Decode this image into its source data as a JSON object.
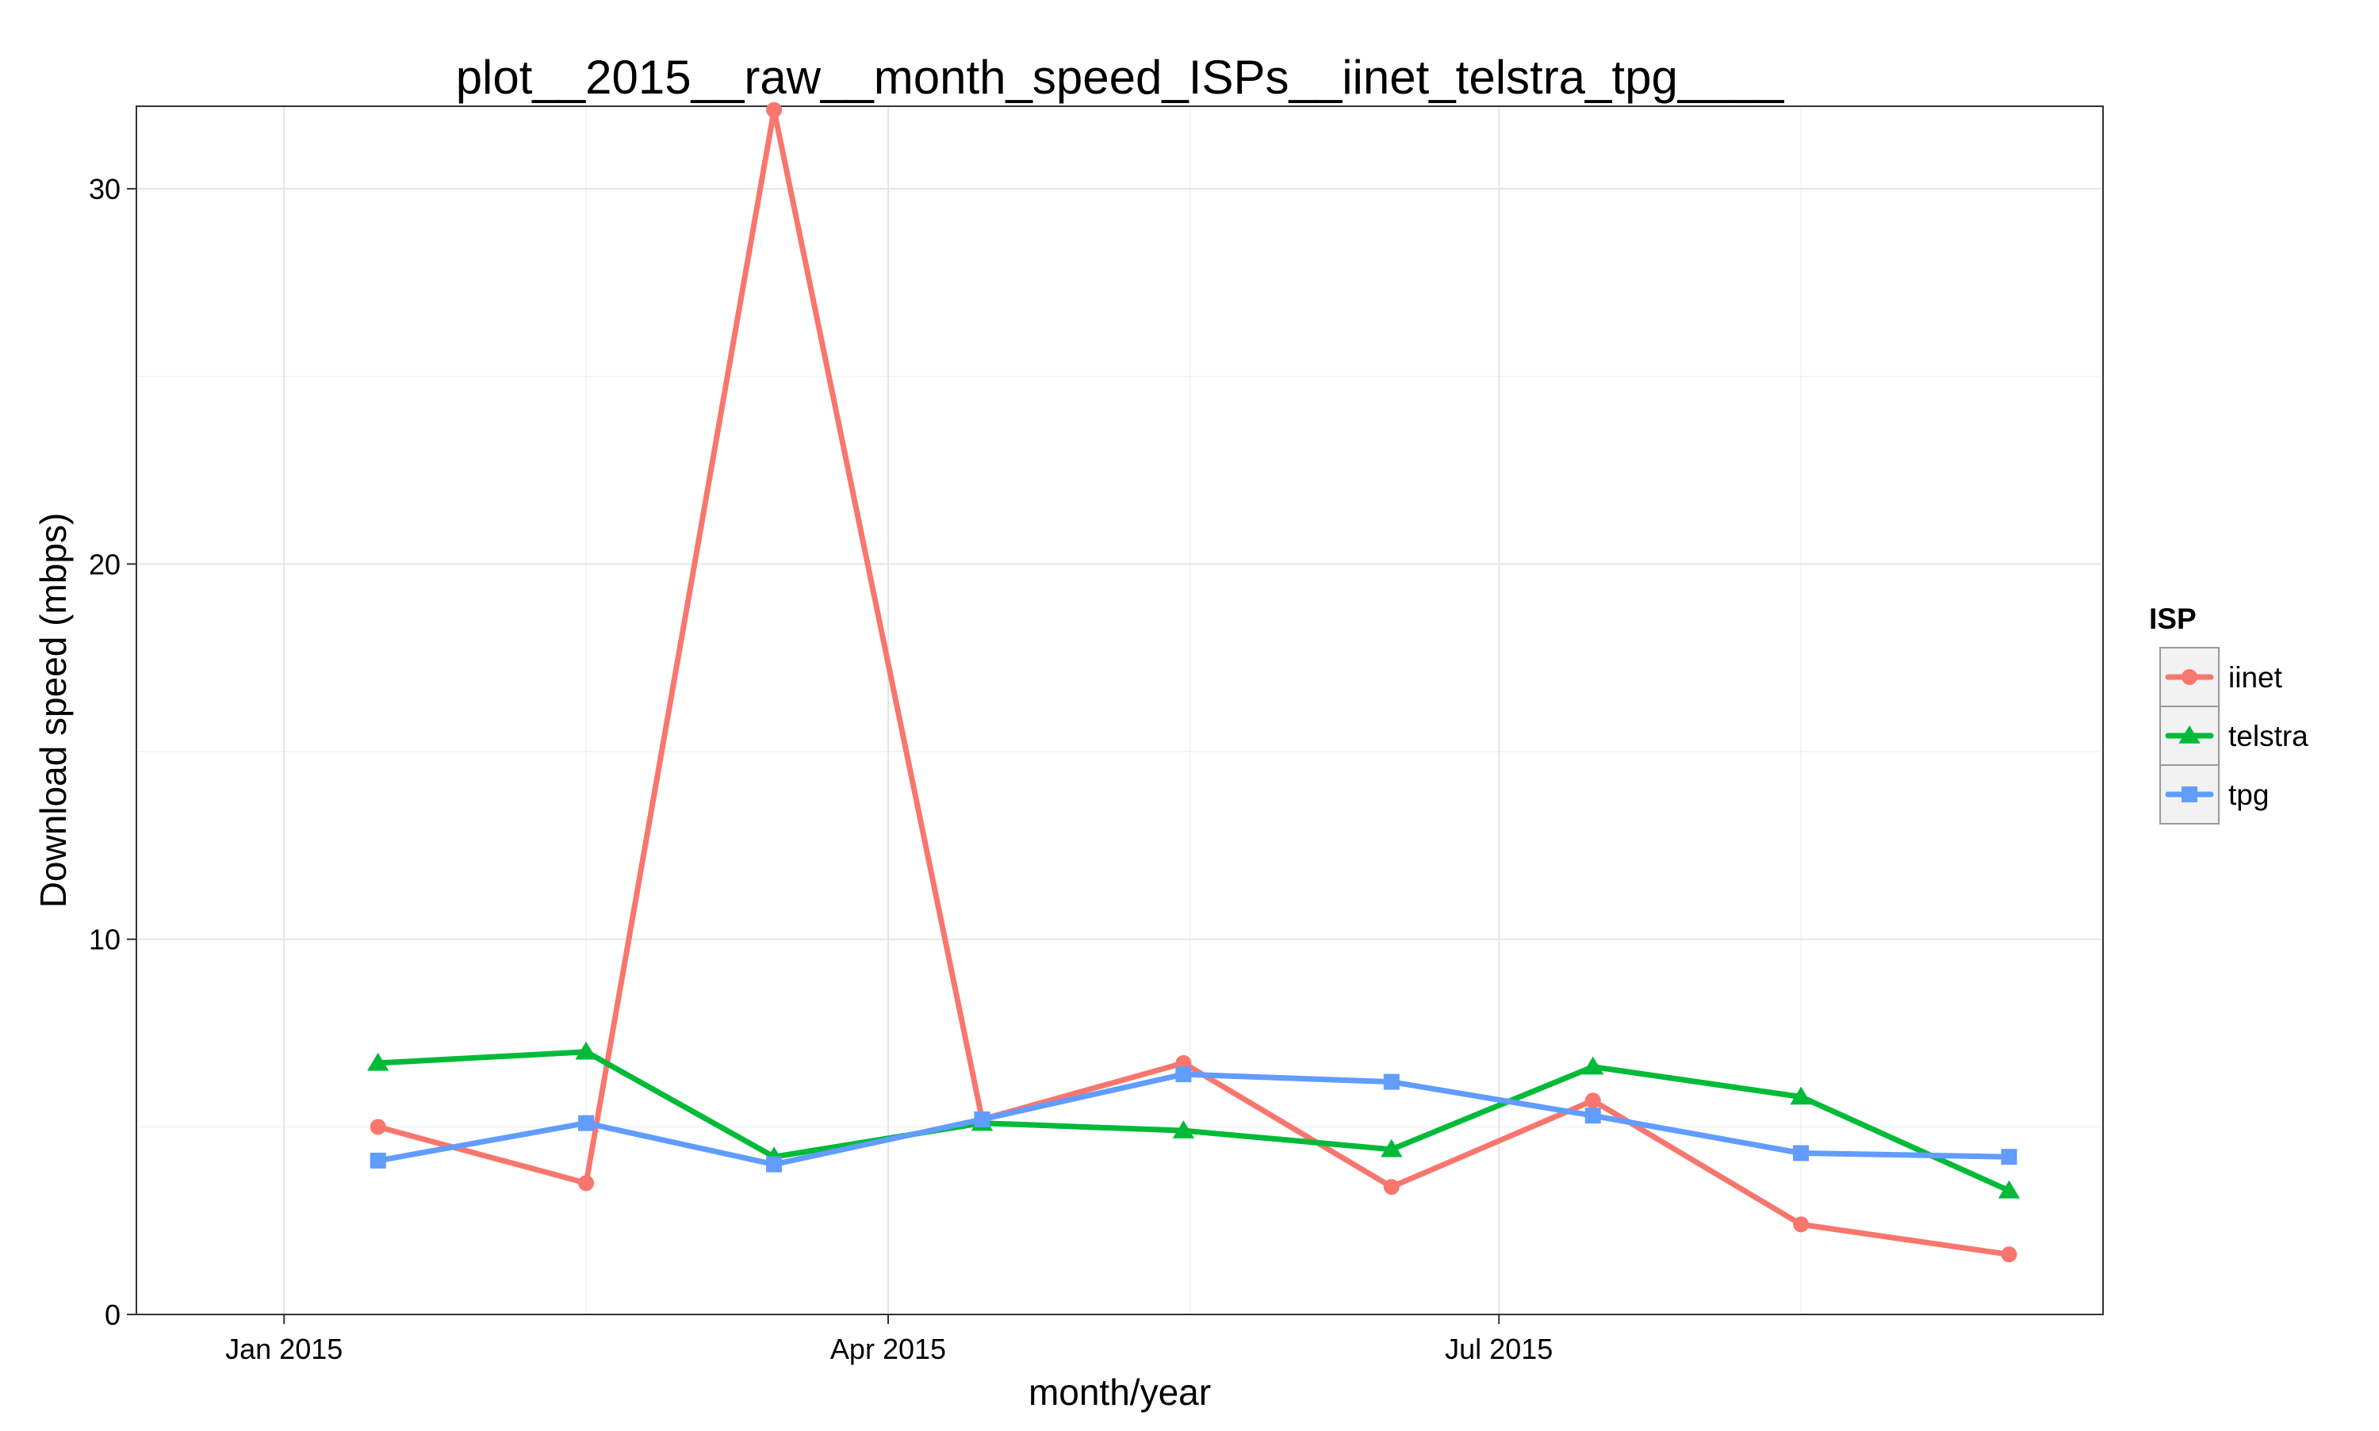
{
  "chart_data": {
    "type": "line",
    "title": "plot__2015__raw__month_speed_ISPs__iinet_telstra_tpg____",
    "xlabel": "month/year",
    "ylabel": "Download speed (mbps)",
    "x": [
      "2015-01-15",
      "2015-02-15",
      "2015-03-15",
      "2015-04-15",
      "2015-05-15",
      "2015-06-15",
      "2015-07-15",
      "2015-08-15",
      "2015-09-15"
    ],
    "x_ticks": [
      {
        "date": "2015-01-01",
        "label": "Jan 2015"
      },
      {
        "date": "2015-04-01",
        "label": "Apr 2015"
      },
      {
        "date": "2015-07-01",
        "label": "Jul 2015"
      }
    ],
    "xlim": [
      "2014-12-10",
      "2015-09-29"
    ],
    "y_ticks": [
      0,
      10,
      20,
      30
    ],
    "ylim": [
      0,
      32.2
    ],
    "grid": true,
    "legend": {
      "title": "ISP",
      "position": "right"
    },
    "series": [
      {
        "name": "iinet",
        "color": "#F8766D",
        "marker": "circle",
        "values": [
          5.0,
          3.5,
          32.1,
          5.2,
          6.7,
          3.4,
          5.7,
          2.4,
          1.6
        ]
      },
      {
        "name": "telstra",
        "color": "#00BA38",
        "marker": "triangle",
        "values": [
          6.7,
          7.0,
          4.2,
          5.1,
          4.9,
          4.4,
          6.6,
          5.8,
          3.3
        ]
      },
      {
        "name": "tpg",
        "color": "#619CFF",
        "marker": "square",
        "values": [
          4.1,
          5.1,
          4.0,
          5.2,
          6.4,
          6.2,
          5.3,
          4.3,
          4.2
        ]
      }
    ]
  }
}
